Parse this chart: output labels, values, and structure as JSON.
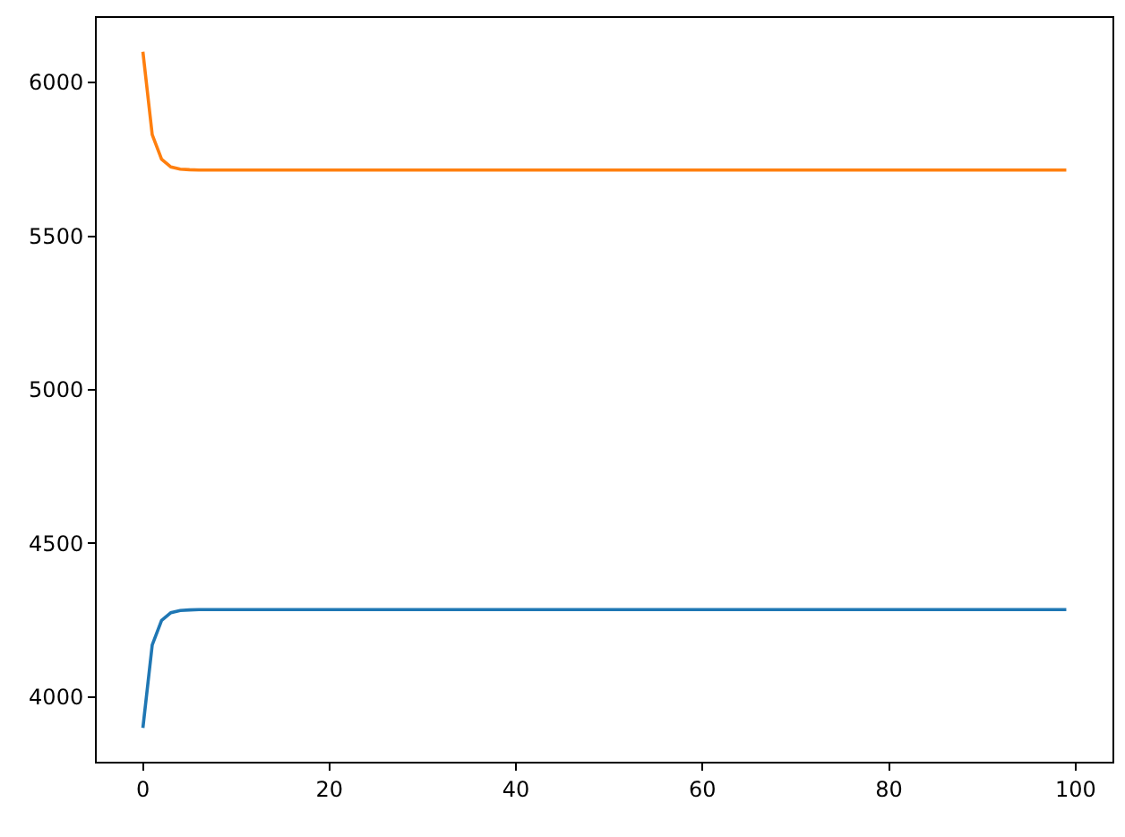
{
  "chart_data": {
    "type": "line",
    "x": [
      0,
      1,
      2,
      3,
      4,
      5,
      6,
      10,
      20,
      30,
      40,
      50,
      60,
      70,
      80,
      90,
      99
    ],
    "series": [
      {
        "color": "#1f77b4",
        "values": [
          3900,
          4170,
          4250,
          4275,
          4282,
          4284,
          4285,
          4285,
          4285,
          4285,
          4285,
          4285,
          4285,
          4285,
          4285,
          4285,
          4285
        ]
      },
      {
        "color": "#ff7f0e",
        "values": [
          6100,
          5830,
          5750,
          5725,
          5718,
          5716,
          5715,
          5715,
          5715,
          5715,
          5715,
          5715,
          5715,
          5715,
          5715,
          5715,
          5715
        ]
      }
    ],
    "xlim": [
      -4.95,
      103.95
    ],
    "xticks": [
      0,
      20,
      40,
      60,
      80,
      100
    ],
    "ylim": [
      3790,
      6210
    ],
    "yticks": [
      4000,
      4500,
      5000,
      5500,
      6000
    ],
    "legend": false,
    "marker": "none",
    "line_style": "solid"
  }
}
